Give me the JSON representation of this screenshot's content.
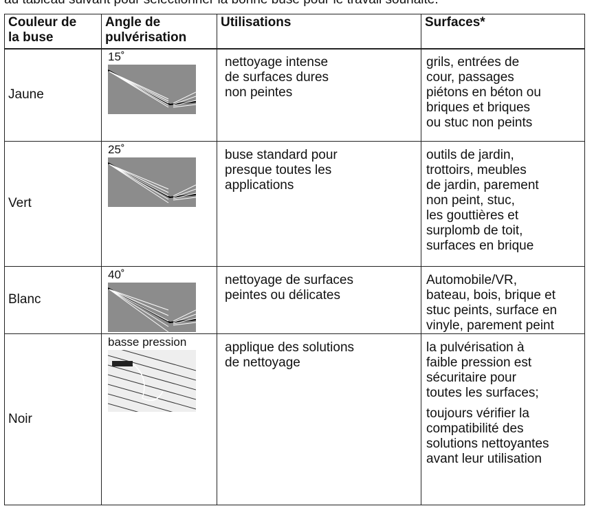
{
  "intro": "au tableau suivant pour sélectionner la bonne buse pour le travail souhaité.",
  "table": {
    "header": [
      [
        "Couleur de",
        "la buse"
      ],
      [
        "Angle de",
        "pulvérisation"
      ],
      [
        "Utilisations"
      ],
      [
        "Surfaces*"
      ]
    ],
    "rows": [
      {
        "color": "Jaune",
        "angle": "15˚",
        "uses": [
          "nettoyage intense",
          "de surfaces dures",
          "non peintes"
        ],
        "surfaces": [
          [
            "grils, entrées de",
            "cour, passages",
            "piétons en béton ou",
            "briques et briques",
            "ou stuc non peints"
          ]
        ]
      },
      {
        "color": "Vert",
        "angle": "25˚",
        "uses": [
          "buse standard pour",
          "presque toutes les",
          "applications"
        ],
        "surfaces": [
          [
            "outils de jardin,",
            "trottoirs, meubles",
            "de jardin, parement",
            "non peint, stuc,",
            "les gouttières et",
            "surplomb de toit,",
            "surfaces en brique"
          ]
        ]
      },
      {
        "color": "Blanc",
        "angle": "40˚",
        "uses": [
          "nettoyage de surfaces",
          "peintes ou délicates"
        ],
        "surfaces": [
          [
            "Automobile/VR,",
            "bateau, bois, brique et",
            "stuc peints, surface en",
            "vinyle, parement peint"
          ]
        ]
      },
      {
        "color": "Noir",
        "angle": "basse pression",
        "uses": [
          "applique des solutions",
          "de nettoyage"
        ],
        "surfaces": [
          [
            "la pulvérisation à",
            "faible pression est",
            "sécuritaire pour",
            "toutes les surfaces;"
          ],
          [
            "toujours vérifier la",
            "compatibilité des",
            "solutions nettoyantes",
            "avant leur utilisation"
          ]
        ]
      }
    ]
  }
}
